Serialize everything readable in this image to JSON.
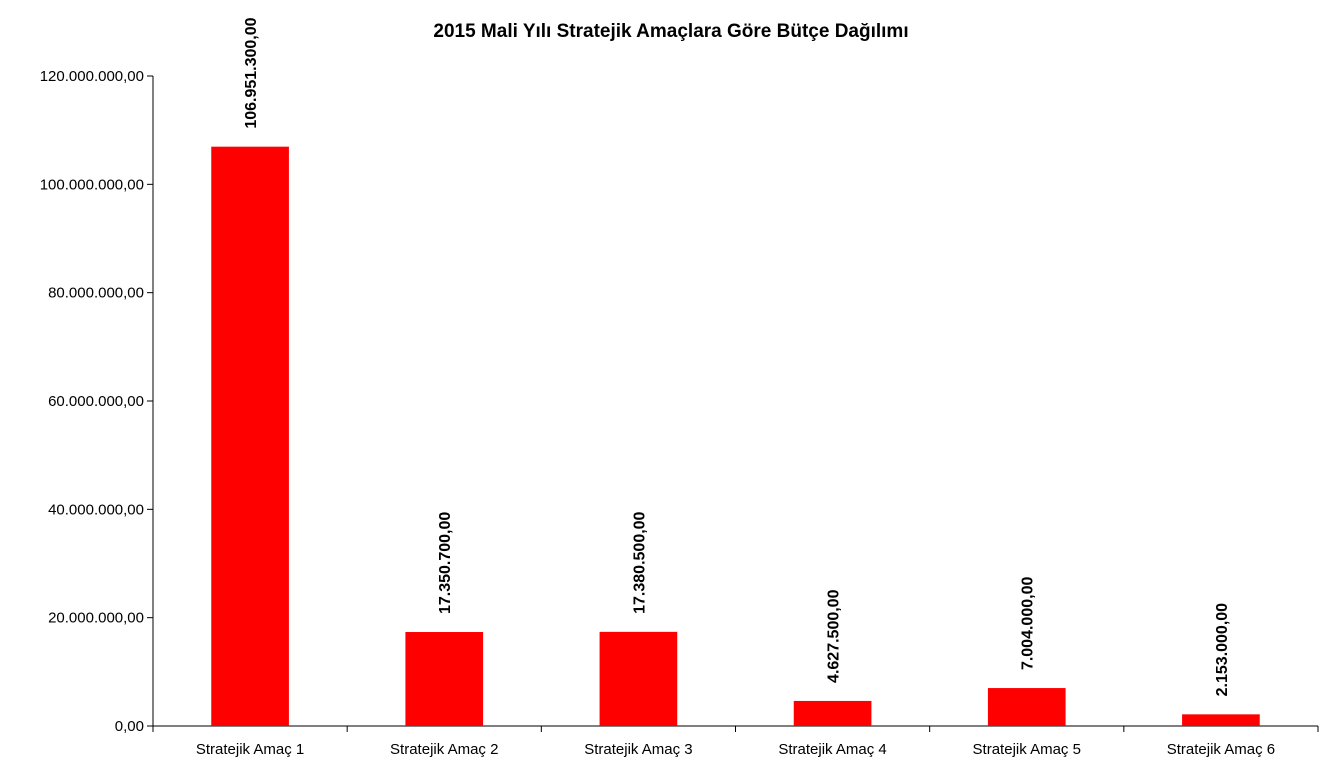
{
  "chart_data": {
    "type": "bar",
    "title": "2015 Mali Yılı Stratejik Amaçlara Göre Bütçe Dağılımı",
    "xlabel": "",
    "ylabel": "",
    "categories": [
      "Stratejik Amaç 1",
      "Stratejik Amaç 2",
      "Stratejik Amaç 3",
      "Stratejik Amaç 4",
      "Stratejik Amaç 5",
      "Stratejik Amaç 6"
    ],
    "values": [
      106951300,
      17350700,
      17380500,
      4627500,
      7004000,
      2153000
    ],
    "data_labels": [
      "106.951.300,00",
      "17.350.700,00",
      "17.380.500,00",
      "4.627.500,00",
      "7.004.000,00",
      "2.153.000,00"
    ],
    "ylim": [
      0,
      120000000
    ],
    "yticks": [
      0,
      20000000,
      40000000,
      60000000,
      80000000,
      100000000,
      120000000
    ],
    "ytick_labels": [
      "0,00",
      "20.000.000,00",
      "40.000.000,00",
      "60.000.000,00",
      "80.000.000,00",
      "100.000.000,00",
      "120.000.000,00"
    ],
    "bar_color": "#ff0000",
    "grid": false,
    "legend": "none"
  }
}
